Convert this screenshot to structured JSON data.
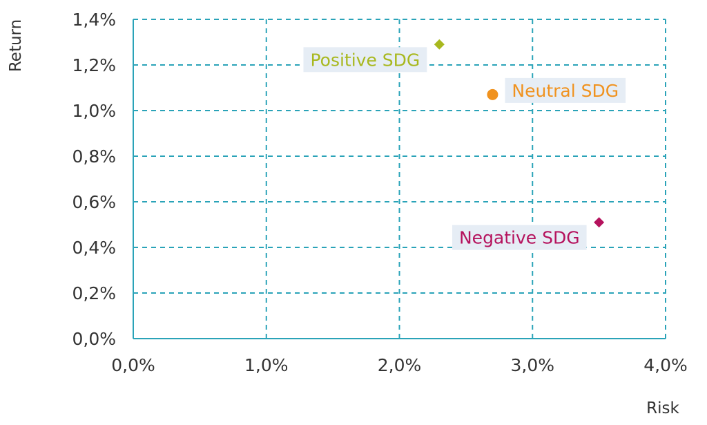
{
  "chart_data": {
    "type": "scatter",
    "title": "",
    "xlabel": "Risk",
    "ylabel": "Return",
    "xlim": [
      0,
      4.0
    ],
    "ylim": [
      0,
      1.4
    ],
    "xticks": [
      0,
      1,
      2,
      3,
      4
    ],
    "yticks": [
      0,
      0.2,
      0.4,
      0.6,
      0.8,
      1.0,
      1.2,
      1.4
    ],
    "xtick_labels": [
      "0,0%",
      "1,0%",
      "2,0%",
      "3,0%",
      "4,0%"
    ],
    "ytick_labels": [
      "0,0%",
      "0,2%",
      "0,4%",
      "0,6%",
      "0,8%",
      "1,0%",
      "1,2%",
      "1,4%"
    ],
    "grid": true,
    "grid_style": "dashed",
    "series": [
      {
        "name": "Positive SDG",
        "x": 2.3,
        "y": 1.29,
        "marker": "diamond",
        "color": "#a8b81e",
        "label_side": "left"
      },
      {
        "name": "Neutral SDG",
        "x": 2.7,
        "y": 1.07,
        "marker": "circle",
        "color": "#f0921e",
        "label_side": "right"
      },
      {
        "name": "Negative SDG",
        "x": 3.5,
        "y": 0.51,
        "marker": "diamond",
        "color": "#b5125d",
        "label_side": "left"
      }
    ]
  },
  "colors": {
    "grid": "#2aa3b8",
    "axis": "#2aa3b8",
    "tick_text": "#333333",
    "label_box": "#e6edf5"
  }
}
